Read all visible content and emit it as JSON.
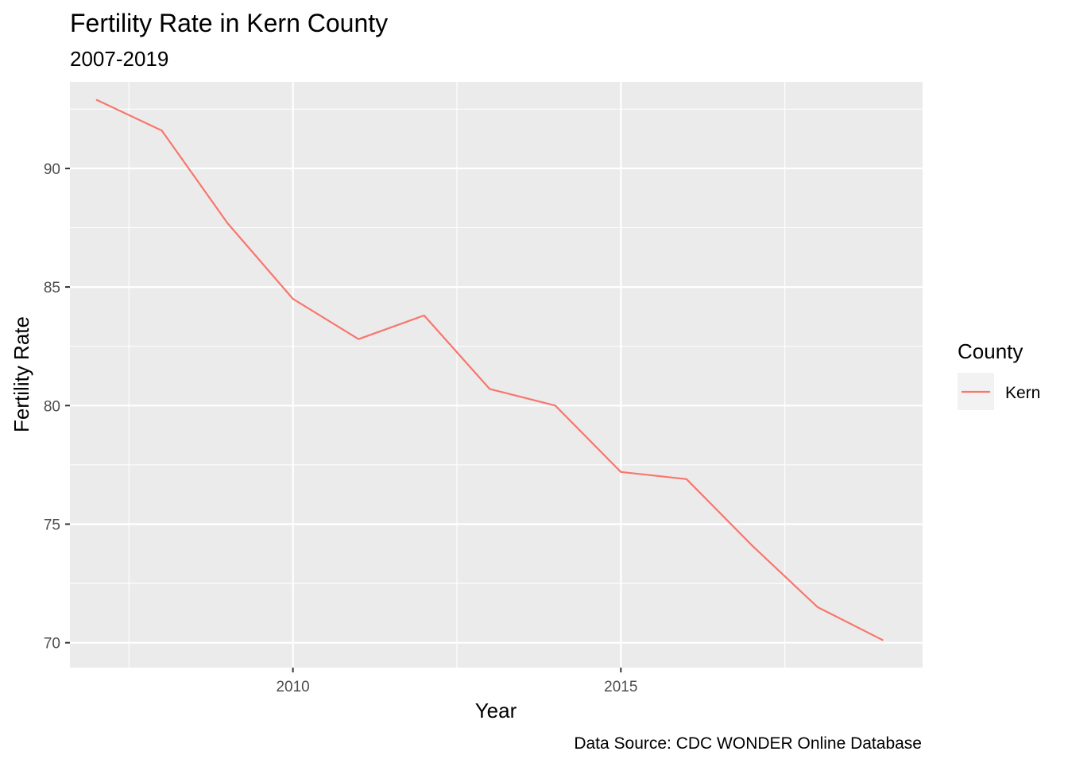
{
  "chart_data": {
    "type": "line",
    "title": "Fertility Rate in Kern County",
    "subtitle": "2007-2019",
    "xlabel": "Year",
    "ylabel": "Fertility Rate",
    "caption": "Data Source: CDC WONDER Online Database",
    "legend_title": "County",
    "legend_position": "right",
    "grid": true,
    "xlim": [
      2006.6,
      2019.6
    ],
    "ylim": [
      68.95,
      93.65
    ],
    "x_ticks": [
      2010,
      2015
    ],
    "x_minor_ticks": [
      2007.5,
      2012.5,
      2017.5
    ],
    "y_ticks": [
      70,
      75,
      80,
      85,
      90
    ],
    "y_minor_ticks": [
      72.5,
      77.5,
      82.5,
      87.5,
      92.5
    ],
    "series": [
      {
        "name": "Kern",
        "color": "#f8766d",
        "x": [
          2007,
          2008,
          2009,
          2010,
          2011,
          2012,
          2013,
          2014,
          2015,
          2016,
          2017,
          2018,
          2019
        ],
        "y": [
          92.9,
          91.6,
          87.7,
          84.5,
          82.8,
          83.8,
          80.7,
          80.0,
          77.2,
          76.9,
          74.1,
          71.5,
          70.1
        ]
      }
    ]
  }
}
